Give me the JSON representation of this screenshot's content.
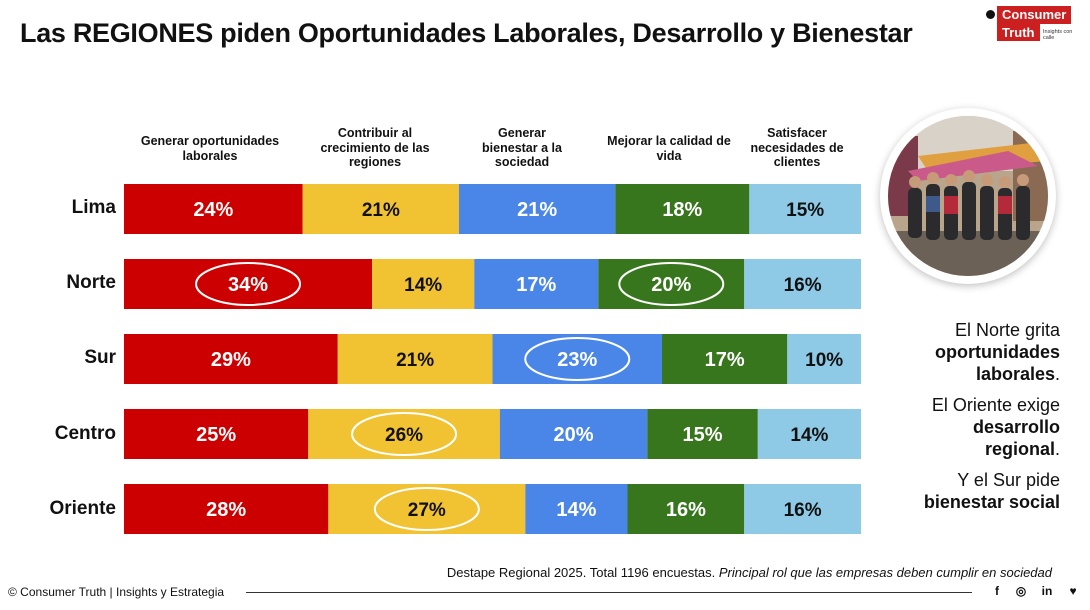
{
  "title": "Las REGIONES piden Oportunidades Laborales, Desarrollo y Bienestar",
  "logo": {
    "line1": "Consumer",
    "line2": "Truth",
    "tagline": "Insights con calle"
  },
  "chart_data": {
    "type": "bar",
    "stacked": true,
    "orientation": "horizontal",
    "categories": [
      "Lima",
      "Norte",
      "Sur",
      "Centro",
      "Oriente"
    ],
    "series": [
      {
        "name": "Generar oportunidades laborales",
        "color": "#cc0000",
        "values": [
          24,
          34,
          29,
          25,
          28
        ]
      },
      {
        "name": "Contribuir al crecimiento de las regiones",
        "color": "#f1c232",
        "values": [
          21,
          14,
          21,
          26,
          27
        ]
      },
      {
        "name": "Generar bienestar a la sociedad",
        "color": "#4a86e8",
        "values": [
          21,
          17,
          23,
          20,
          14
        ]
      },
      {
        "name": "Mejorar la calidad de vida",
        "color": "#38761d",
        "values": [
          18,
          20,
          17,
          15,
          16
        ]
      },
      {
        "name": "Satisfacer necesidades de clientes",
        "color": "#8ecae6",
        "values": [
          15,
          16,
          10,
          14,
          16
        ]
      }
    ],
    "highlights": [
      {
        "row": 1,
        "series": 0
      },
      {
        "row": 1,
        "series": 3
      },
      {
        "row": 2,
        "series": 2
      },
      {
        "row": 3,
        "series": 1
      },
      {
        "row": 4,
        "series": 1
      }
    ],
    "value_suffix": "%"
  },
  "side_text": {
    "p1_line1": "El Norte grita",
    "p1_bold1": "oportunidades",
    "p1_bold2": "laborales",
    "p2_line1": "El Oriente exige",
    "p2_bold1": "desarrollo",
    "p2_bold2": "regional",
    "p3_line1": "Y el Sur pide",
    "p3_bold1": "bienestar social",
    "period": "."
  },
  "footer": {
    "source_main": "Destape Regional 2025. Total 1196 encuestas.",
    "source_italic": "Principal rol que las empresas deben cumplir en sociedad",
    "copyright": "© Consumer Truth | Insights y Estrategia",
    "social": [
      "f",
      "◎",
      "in",
      "♥"
    ]
  }
}
